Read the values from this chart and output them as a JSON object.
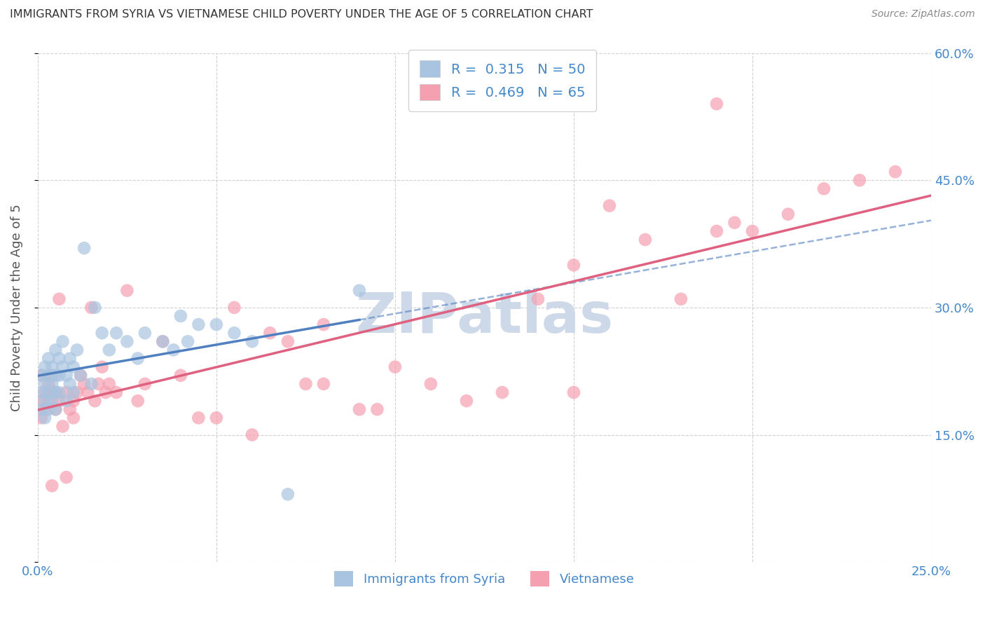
{
  "title": "IMMIGRANTS FROM SYRIA VS VIETNAMESE CHILD POVERTY UNDER THE AGE OF 5 CORRELATION CHART",
  "source": "Source: ZipAtlas.com",
  "ylabel": "Child Poverty Under the Age of 5",
  "legend_label1": "Immigrants from Syria",
  "legend_label2": "Vietnamese",
  "R1": 0.315,
  "N1": 50,
  "R2": 0.469,
  "N2": 65,
  "xlim": [
    0.0,
    0.25
  ],
  "ylim": [
    0.0,
    0.6
  ],
  "color_syria": "#a8c4e0",
  "color_viet": "#f4a0b0",
  "color_trend_syria": "#5080c0",
  "color_trend_viet": "#e06080",
  "color_axis_label": "#4488cc",
  "color_title": "#333333",
  "watermark_text": "ZIPatlas",
  "watermark_color": "#cdd8e8",
  "syria_x": [
    0.001,
    0.001,
    0.001,
    0.002,
    0.002,
    0.002,
    0.002,
    0.003,
    0.003,
    0.003,
    0.003,
    0.004,
    0.004,
    0.004,
    0.005,
    0.005,
    0.005,
    0.005,
    0.006,
    0.006,
    0.006,
    0.007,
    0.007,
    0.008,
    0.008,
    0.009,
    0.009,
    0.01,
    0.01,
    0.011,
    0.012,
    0.013,
    0.015,
    0.016,
    0.018,
    0.02,
    0.022,
    0.025,
    0.028,
    0.03,
    0.035,
    0.038,
    0.04,
    0.042,
    0.045,
    0.05,
    0.055,
    0.06,
    0.07,
    0.09
  ],
  "syria_y": [
    0.2,
    0.18,
    0.22,
    0.21,
    0.19,
    0.23,
    0.17,
    0.24,
    0.2,
    0.22,
    0.18,
    0.23,
    0.21,
    0.19,
    0.25,
    0.22,
    0.2,
    0.18,
    0.24,
    0.22,
    0.2,
    0.26,
    0.23,
    0.22,
    0.19,
    0.24,
    0.21,
    0.23,
    0.2,
    0.25,
    0.22,
    0.37,
    0.21,
    0.3,
    0.27,
    0.25,
    0.27,
    0.26,
    0.24,
    0.27,
    0.26,
    0.25,
    0.29,
    0.26,
    0.28,
    0.28,
    0.27,
    0.26,
    0.08,
    0.32
  ],
  "viet_x": [
    0.001,
    0.001,
    0.001,
    0.002,
    0.002,
    0.003,
    0.003,
    0.004,
    0.004,
    0.004,
    0.005,
    0.005,
    0.006,
    0.006,
    0.007,
    0.008,
    0.008,
    0.009,
    0.01,
    0.01,
    0.011,
    0.012,
    0.013,
    0.014,
    0.015,
    0.016,
    0.017,
    0.018,
    0.019,
    0.02,
    0.022,
    0.025,
    0.028,
    0.03,
    0.035,
    0.04,
    0.045,
    0.05,
    0.055,
    0.06,
    0.065,
    0.07,
    0.075,
    0.08,
    0.09,
    0.095,
    0.1,
    0.11,
    0.12,
    0.13,
    0.14,
    0.15,
    0.16,
    0.17,
    0.18,
    0.19,
    0.195,
    0.2,
    0.21,
    0.22,
    0.23,
    0.24,
    0.19,
    0.08,
    0.15
  ],
  "viet_y": [
    0.19,
    0.17,
    0.22,
    0.2,
    0.18,
    0.21,
    0.19,
    0.2,
    0.09,
    0.22,
    0.18,
    0.2,
    0.19,
    0.31,
    0.16,
    0.1,
    0.2,
    0.18,
    0.17,
    0.19,
    0.2,
    0.22,
    0.21,
    0.2,
    0.3,
    0.19,
    0.21,
    0.23,
    0.2,
    0.21,
    0.2,
    0.32,
    0.19,
    0.21,
    0.26,
    0.22,
    0.17,
    0.17,
    0.3,
    0.15,
    0.27,
    0.26,
    0.21,
    0.28,
    0.18,
    0.18,
    0.23,
    0.21,
    0.19,
    0.2,
    0.31,
    0.35,
    0.42,
    0.38,
    0.31,
    0.39,
    0.4,
    0.39,
    0.41,
    0.44,
    0.45,
    0.46,
    0.54,
    0.21,
    0.2
  ]
}
